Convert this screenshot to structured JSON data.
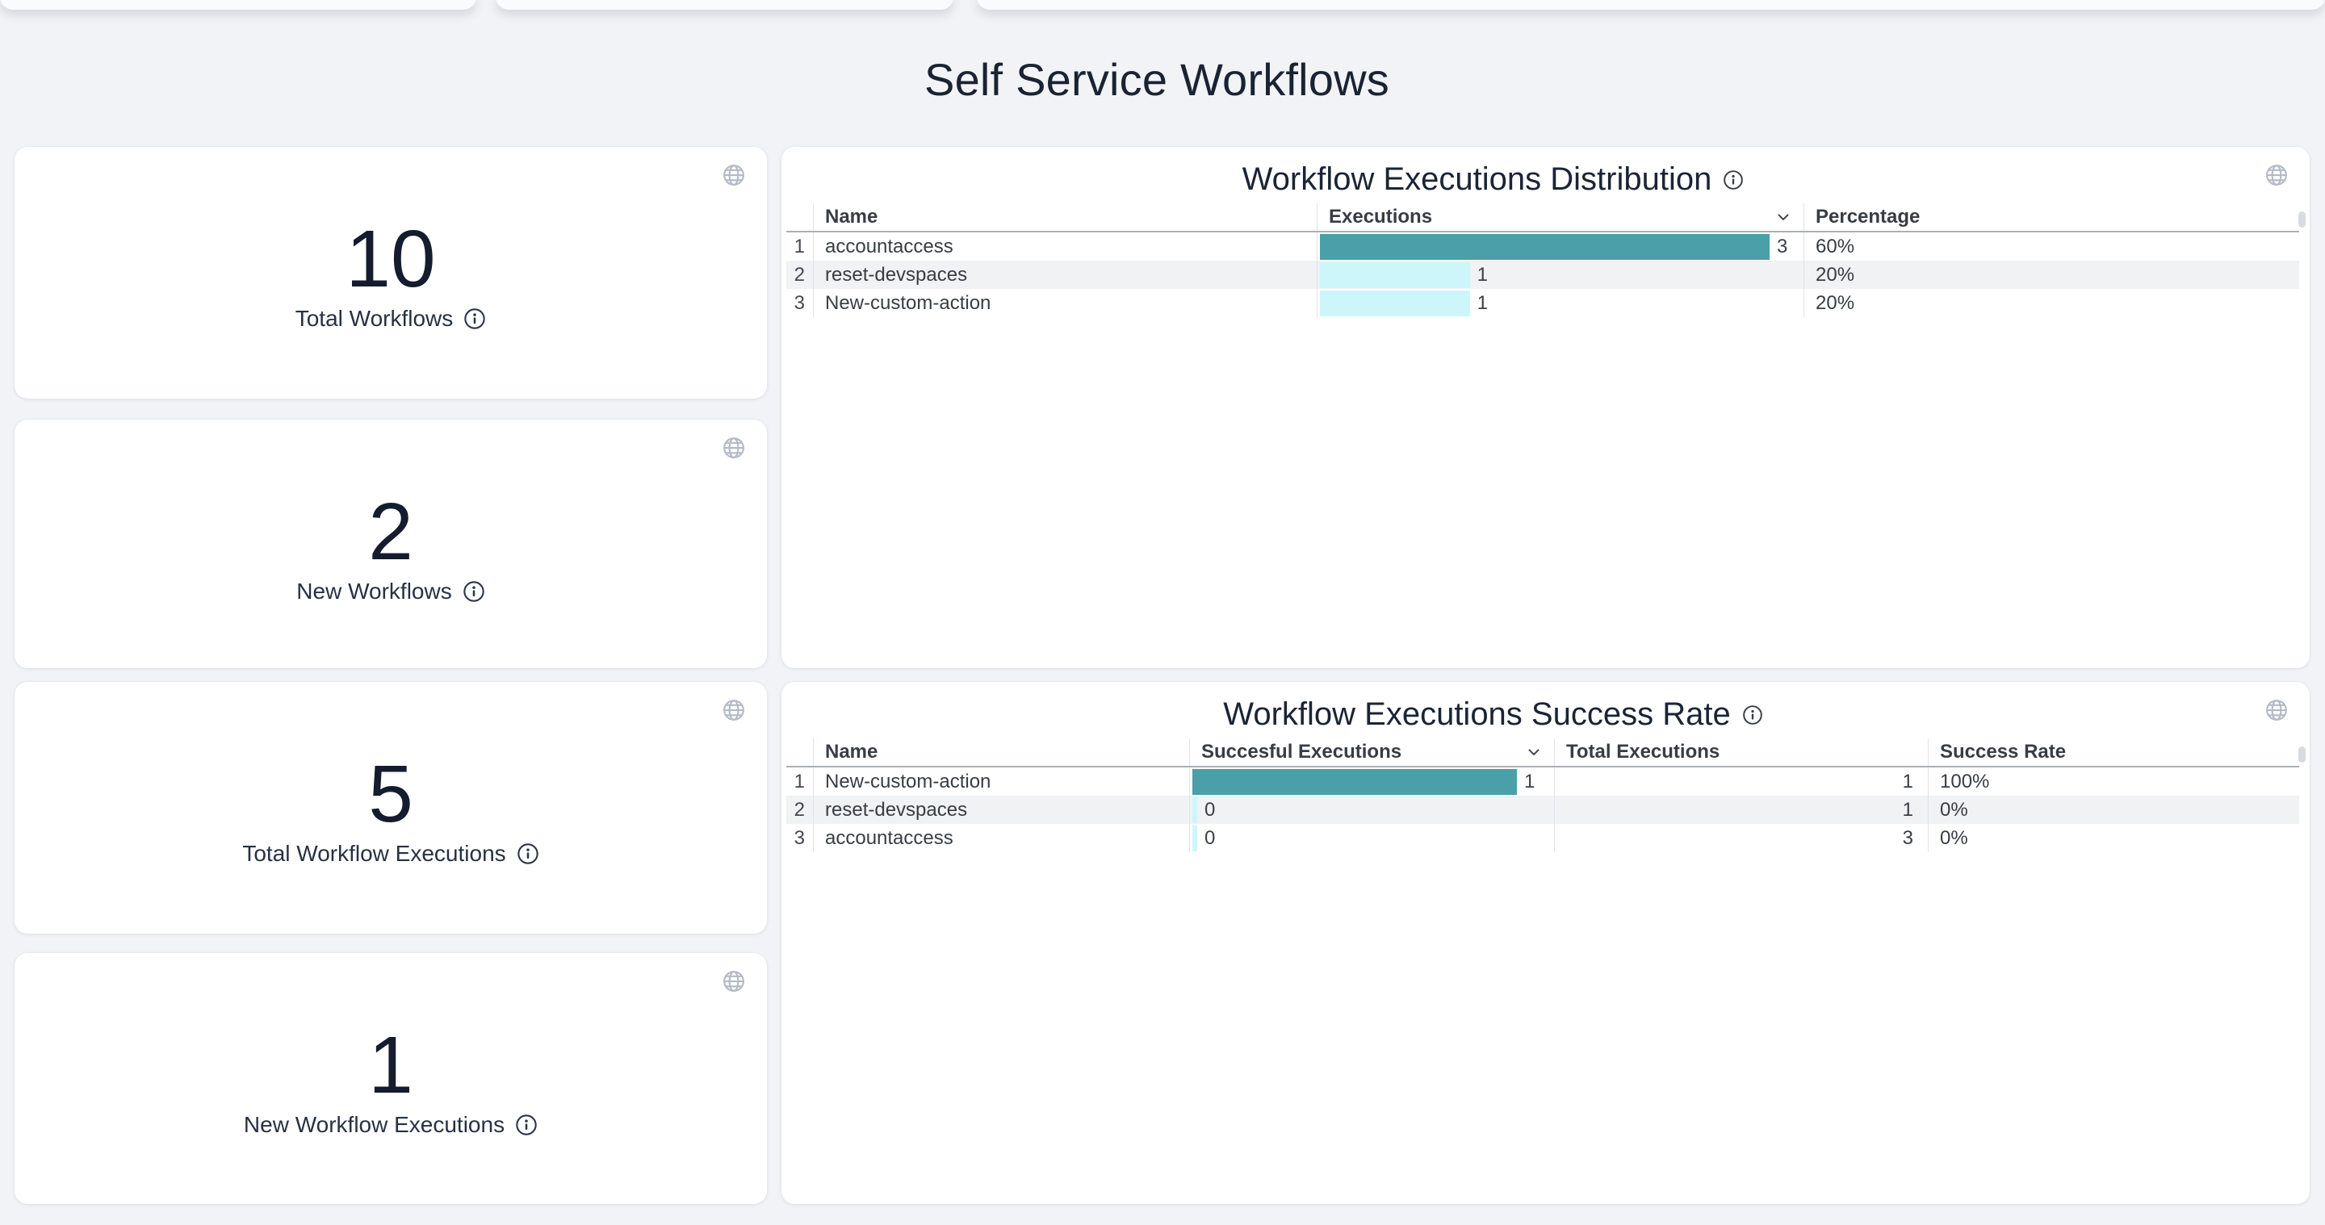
{
  "page": {
    "title": "Self Service Workflows"
  },
  "colors": {
    "page_bg": "#f1f3f6",
    "bar_primary": "#4a9fa8",
    "bar_secondary": "#cdf6fb",
    "title_text": "#1a2332"
  },
  "icons": {
    "card_corner": "globe-icon",
    "label_hint": "info-icon",
    "sort_indicator": "chevron-down-icon"
  },
  "stat_cards": [
    {
      "value": "10",
      "label": "Total Workflows"
    },
    {
      "value": "2",
      "label": "New Workflows"
    },
    {
      "value": "5",
      "label": "Total Workflow Executions"
    },
    {
      "value": "1",
      "label": "New Workflow Executions"
    }
  ],
  "tables": [
    {
      "title": "Workflow Executions Distribution",
      "headers": {
        "name": "Name",
        "executions": "Executions",
        "percentage": "Percentage"
      },
      "sort": {
        "column": "Executions",
        "direction": "desc"
      },
      "rows": [
        {
          "num": "1",
          "name": "accountaccess",
          "bar": {
            "value": 3,
            "max": 3,
            "label": "3",
            "color": "#4a9fa8"
          },
          "percentage": "60%"
        },
        {
          "num": "2",
          "name": "reset-devspaces",
          "bar": {
            "value": 1,
            "max": 3,
            "label": "1",
            "color": "#cdf6fb"
          },
          "percentage": "20%"
        },
        {
          "num": "3",
          "name": "New-custom-action",
          "bar": {
            "value": 1,
            "max": 3,
            "label": "1",
            "color": "#cdf6fb"
          },
          "percentage": "20%"
        }
      ]
    },
    {
      "title": "Workflow Executions Success Rate",
      "headers": {
        "name": "Name",
        "successful": "Succesful Executions",
        "total": "Total Executions",
        "rate": "Success Rate"
      },
      "sort": {
        "column": "Succesful Executions",
        "direction": "desc"
      },
      "rows": [
        {
          "num": "1",
          "name": "New-custom-action",
          "bar": {
            "value": 1,
            "max": 1,
            "label": "1",
            "color": "#4a9fa8"
          },
          "total": "1",
          "rate": "100%"
        },
        {
          "num": "2",
          "name": "reset-devspaces",
          "bar": {
            "value": 0,
            "max": 1,
            "label": "0",
            "color": "#cdf6fb"
          },
          "total": "1",
          "rate": "0%"
        },
        {
          "num": "3",
          "name": "accountaccess",
          "bar": {
            "value": 0,
            "max": 1,
            "label": "0",
            "color": "#cdf6fb"
          },
          "total": "3",
          "rate": "0%"
        }
      ]
    }
  ]
}
